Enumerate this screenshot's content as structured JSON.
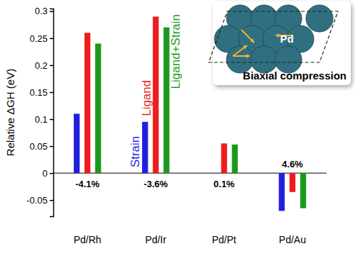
{
  "chart_data": {
    "type": "bar",
    "y_label": "Relative ΔGH (eV)",
    "categories": [
      "Pd/Rh",
      "Pd/Ir",
      "Pd/Pt",
      "Pd/Au"
    ],
    "series": [
      {
        "name": "Strain",
        "color": "#1f1fe0",
        "values": [
          0.11,
          0.095,
          0,
          -0.07
        ]
      },
      {
        "name": "Ligand",
        "color": "#ee1c1c",
        "values": [
          0.26,
          0.29,
          0.055,
          -0.035
        ]
      },
      {
        "name": "Ligand+Strain",
        "color": "#1a9a1a",
        "values": [
          0.24,
          0.27,
          0.053,
          -0.065
        ]
      }
    ],
    "annotations": [
      "-4.1%",
      "-3.6%",
      "0.1%",
      "4.6%"
    ],
    "ylim": [
      -0.08,
      0.305
    ],
    "yticks": [
      -0.05,
      0,
      0.05,
      0.1,
      0.15,
      0.2,
      0.25,
      0.3
    ],
    "inset": {
      "label": "Pd",
      "caption": "Biaxial compression"
    }
  }
}
